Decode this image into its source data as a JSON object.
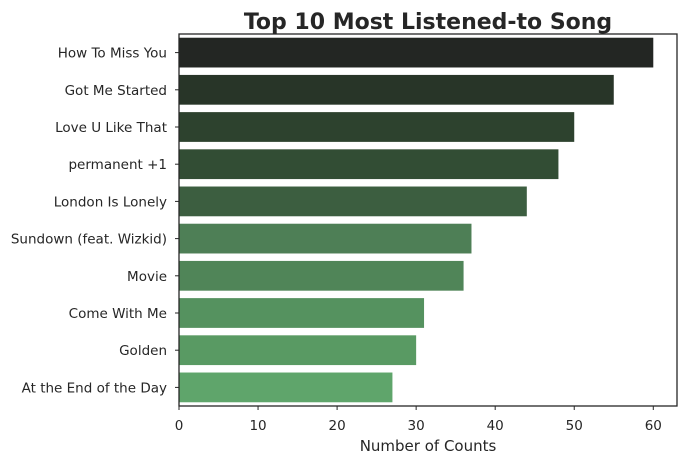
{
  "chart_data": {
    "type": "bar",
    "orientation": "horizontal",
    "title": "Top 10 Most Listened-to Song",
    "xlabel": "Number of Counts",
    "ylabel": "",
    "xlim": [
      0,
      63
    ],
    "xticks": [
      0,
      10,
      20,
      30,
      40,
      50,
      60
    ],
    "grid": false,
    "legend": "none",
    "categories": [
      "How To Miss You",
      "Got Me Started",
      "Love U Like That",
      "permanent +1",
      "London Is Lonely",
      "Sundown (feat. Wizkid)",
      "Movie",
      "Come With Me",
      "Golden",
      "At the End of the Day"
    ],
    "values": [
      60,
      55,
      50,
      48,
      44,
      37,
      36,
      31,
      30,
      27
    ],
    "colors": [
      "#232623",
      "#283528",
      "#2d422e",
      "#324d34",
      "#3c5e40",
      "#4e7f56",
      "#508558",
      "#55925f",
      "#599a63",
      "#5fa56b"
    ]
  }
}
